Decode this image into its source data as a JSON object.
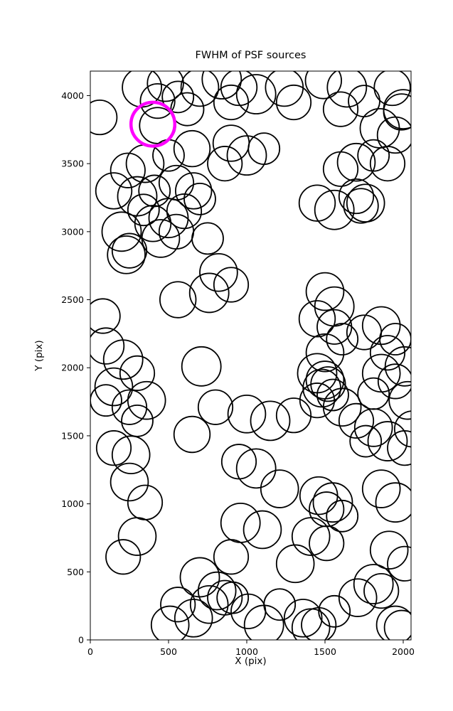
{
  "chart_data": {
    "type": "scatter",
    "title": "FWHM of PSF sources",
    "xlabel": "X (pix)",
    "ylabel": "Y (pix)",
    "xlim": [
      0,
      2050
    ],
    "ylim": [
      0,
      4180
    ],
    "xticks": [
      0,
      500,
      1000,
      1500,
      2000
    ],
    "yticks": [
      0,
      500,
      1000,
      1500,
      2000,
      2500,
      3000,
      3500,
      4000
    ],
    "grid": false,
    "legend": null,
    "background_color": "#ffffff",
    "circle_color": "#000000",
    "circle_stroke_width": 1.8,
    "circles": [
      [
        60,
        3840,
        110
      ],
      [
        330,
        4060,
        125
      ],
      [
        480,
        4090,
        115
      ],
      [
        430,
        3960,
        110
      ],
      [
        560,
        3990,
        100
      ],
      [
        430,
        3780,
        115
      ],
      [
        620,
        3900,
        105
      ],
      [
        700,
        4060,
        120
      ],
      [
        840,
        4120,
        125
      ],
      [
        950,
        4060,
        115
      ],
      [
        900,
        3950,
        110
      ],
      [
        1060,
        4010,
        125
      ],
      [
        1240,
        4060,
        120
      ],
      [
        1300,
        3950,
        110
      ],
      [
        1490,
        4110,
        115
      ],
      [
        1640,
        4060,
        125
      ],
      [
        1600,
        3900,
        110
      ],
      [
        1750,
        3960,
        100
      ],
      [
        1930,
        4060,
        115
      ],
      [
        2000,
        3900,
        125
      ],
      [
        1990,
        3880,
        115
      ],
      [
        1850,
        3760,
        125
      ],
      [
        1950,
        3710,
        115
      ],
      [
        900,
        3650,
        115
      ],
      [
        1000,
        3560,
        125
      ],
      [
        1110,
        3610,
        100
      ],
      [
        860,
        3500,
        110
      ],
      [
        650,
        3610,
        115
      ],
      [
        500,
        3560,
        100
      ],
      [
        350,
        3500,
        120
      ],
      [
        240,
        3450,
        110
      ],
      [
        150,
        3300,
        115
      ],
      [
        300,
        3260,
        125
      ],
      [
        410,
        3300,
        100
      ],
      [
        550,
        3360,
        110
      ],
      [
        660,
        3300,
        115
      ],
      [
        700,
        3240,
        100
      ],
      [
        600,
        3150,
        110
      ],
      [
        500,
        3100,
        125
      ],
      [
        400,
        3060,
        115
      ],
      [
        340,
        3160,
        100
      ],
      [
        550,
        3000,
        110
      ],
      [
        450,
        2950,
        120
      ],
      [
        200,
        3000,
        125
      ],
      [
        250,
        2860,
        110
      ],
      [
        230,
        2830,
        120
      ],
      [
        750,
        2950,
        100
      ],
      [
        820,
        2700,
        120
      ],
      [
        900,
        2610,
        110
      ],
      [
        760,
        2550,
        125
      ],
      [
        560,
        2500,
        115
      ],
      [
        80,
        2380,
        110
      ],
      [
        1600,
        3460,
        110
      ],
      [
        1700,
        3510,
        120
      ],
      [
        1810,
        3560,
        100
      ],
      [
        1900,
        3500,
        110
      ],
      [
        1450,
        3210,
        115
      ],
      [
        1560,
        3160,
        125
      ],
      [
        1700,
        3260,
        110
      ],
      [
        1760,
        3210,
        120
      ],
      [
        1730,
        3190,
        110
      ],
      [
        1500,
        2560,
        120
      ],
      [
        1560,
        2450,
        125
      ],
      [
        1450,
        2360,
        115
      ],
      [
        1560,
        2300,
        110
      ],
      [
        1610,
        2210,
        100
      ],
      [
        1500,
        2110,
        120
      ],
      [
        1450,
        1960,
        125
      ],
      [
        1500,
        1910,
        120
      ],
      [
        1520,
        1880,
        110
      ],
      [
        1480,
        1850,
        120
      ],
      [
        1550,
        1800,
        100
      ],
      [
        1450,
        1760,
        110
      ],
      [
        1610,
        1710,
        120
      ],
      [
        1750,
        2260,
        110
      ],
      [
        1860,
        2310,
        120
      ],
      [
        1950,
        2210,
        100
      ],
      [
        1900,
        2110,
        110
      ],
      [
        2010,
        2010,
        125
      ],
      [
        1860,
        1960,
        120
      ],
      [
        1950,
        1900,
        110
      ],
      [
        1810,
        1810,
        100
      ],
      [
        2030,
        1760,
        120
      ],
      [
        1700,
        1610,
        110
      ],
      [
        1810,
        1560,
        120
      ],
      [
        1900,
        1460,
        125
      ],
      [
        2010,
        1410,
        110
      ],
      [
        1760,
        1460,
        100
      ],
      [
        2060,
        1550,
        115
      ],
      [
        100,
        2160,
        115
      ],
      [
        210,
        2060,
        125
      ],
      [
        300,
        1960,
        110
      ],
      [
        150,
        1860,
        120
      ],
      [
        100,
        1760,
        100
      ],
      [
        250,
        1710,
        110
      ],
      [
        360,
        1760,
        120
      ],
      [
        300,
        1610,
        100
      ],
      [
        710,
        2010,
        125
      ],
      [
        800,
        1710,
        110
      ],
      [
        1000,
        1660,
        120
      ],
      [
        1150,
        1610,
        125
      ],
      [
        950,
        1310,
        110
      ],
      [
        1060,
        1260,
        125
      ],
      [
        1210,
        1110,
        120
      ],
      [
        650,
        1510,
        115
      ],
      [
        250,
        1160,
        120
      ],
      [
        350,
        1010,
        110
      ],
      [
        300,
        760,
        120
      ],
      [
        210,
        610,
        110
      ],
      [
        150,
        1410,
        110
      ],
      [
        260,
        1360,
        120
      ],
      [
        960,
        860,
        125
      ],
      [
        1100,
        810,
        120
      ],
      [
        900,
        610,
        110
      ],
      [
        1310,
        560,
        120
      ],
      [
        1460,
        1060,
        120
      ],
      [
        1550,
        1010,
        125
      ],
      [
        1510,
        960,
        110
      ],
      [
        1610,
        910,
        100
      ],
      [
        1410,
        760,
        120
      ],
      [
        1510,
        710,
        110
      ],
      [
        1860,
        1110,
        120
      ],
      [
        1950,
        1010,
        125
      ],
      [
        1910,
        660,
        120
      ],
      [
        2010,
        560,
        110
      ],
      [
        700,
        460,
        125
      ],
      [
        810,
        360,
        120
      ],
      [
        860,
        310,
        110
      ],
      [
        760,
        260,
        120
      ],
      [
        910,
        310,
        100
      ],
      [
        660,
        160,
        120
      ],
      [
        560,
        260,
        110
      ],
      [
        510,
        110,
        120
      ],
      [
        1010,
        210,
        110
      ],
      [
        1110,
        110,
        125
      ],
      [
        1210,
        260,
        100
      ],
      [
        1360,
        160,
        120
      ],
      [
        1460,
        110,
        110
      ],
      [
        1410,
        90,
        120
      ],
      [
        1560,
        210,
        100
      ],
      [
        1710,
        310,
        120
      ],
      [
        1810,
        410,
        125
      ],
      [
        1860,
        360,
        110
      ],
      [
        1950,
        110,
        120
      ],
      [
        1990,
        90,
        110
      ],
      [
        1300,
        1650,
        110
      ]
    ],
    "highlight": {
      "x": 400,
      "y": 3790,
      "r": 140,
      "color": "#ff00ff",
      "stroke_width": 4.5
    }
  }
}
